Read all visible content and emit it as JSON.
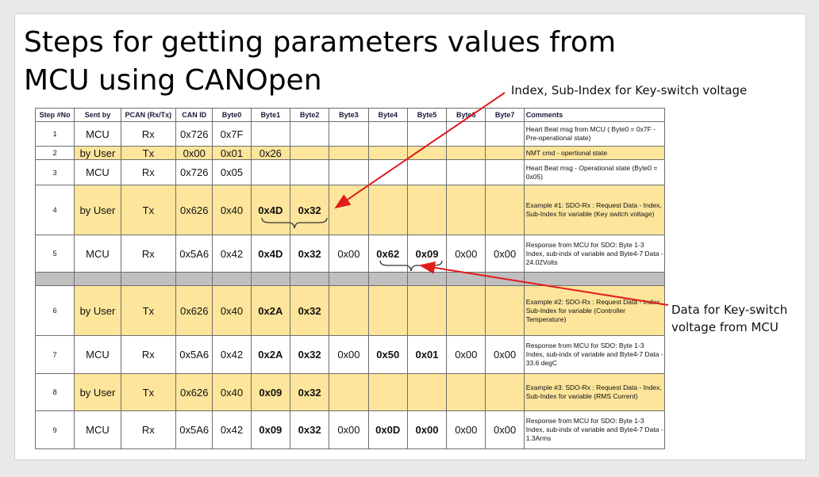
{
  "title": {
    "line1": "Steps for getting parameters values from",
    "line2": "MCU using CANOpen"
  },
  "table": {
    "headers": [
      "Step #No",
      "Sent by",
      "PCAN (Rx/Tx)",
      "CAN ID",
      "Byte0",
      "Byte1",
      "Byte2",
      "Byte3",
      "Byte4",
      "Byte5",
      "Byte6",
      "Byte7",
      "Comments"
    ],
    "rows": [
      {
        "step": "1",
        "sent_by": "MCU",
        "pcan": "Rx",
        "can_id": "0x726",
        "b0": "0x7F",
        "b1": "",
        "b2": "",
        "b3": "",
        "b4": "",
        "b5": "",
        "b6": "",
        "b7": "",
        "comment": "Heart Beat msg from MCU ( Byte0 = 0x7F - Pre-operational state)"
      },
      {
        "step": "2",
        "sent_by": "by User",
        "pcan": "Tx",
        "can_id": "0x00",
        "b0": "0x01",
        "b1": "0x26",
        "b2": "",
        "b3": "",
        "b4": "",
        "b5": "",
        "b6": "",
        "b7": "",
        "comment": "NMT cmd - opertional state"
      },
      {
        "step": "3",
        "sent_by": "MCU",
        "pcan": "Rx",
        "can_id": "0x726",
        "b0": "0x05",
        "b1": "",
        "b2": "",
        "b3": "",
        "b4": "",
        "b5": "",
        "b6": "",
        "b7": "",
        "comment": "Heart Beat msg - Operational state (Byte0 = 0x05)"
      },
      {
        "step": "4",
        "sent_by": "by User",
        "pcan": "Tx",
        "can_id": "0x626",
        "b0": "0x40",
        "b1": "0x4D",
        "b2": "0x32",
        "b3": "",
        "b4": "",
        "b5": "",
        "b6": "",
        "b7": "",
        "comment": "Example #1: SDO-Rx : Request Data - Index, Sub-Index for variable (Key switch voltage)"
      },
      {
        "step": "5",
        "sent_by": "MCU",
        "pcan": "Rx",
        "can_id": "0x5A6",
        "b0": "0x42",
        "b1": "0x4D",
        "b2": "0x32",
        "b3": "0x00",
        "b4": "0x62",
        "b5": "0x09",
        "b6": "0x00",
        "b7": "0x00",
        "comment": "Response from MCU for SDO: Byte 1-3 Index, sub-indx of variable and Byte4-7 Data - 24.02Volts"
      },
      {
        "step": "6",
        "sent_by": "by User",
        "pcan": "Tx",
        "can_id": "0x626",
        "b0": "0x40",
        "b1": "0x2A",
        "b2": "0x32",
        "b3": "",
        "b4": "",
        "b5": "",
        "b6": "",
        "b7": "",
        "comment": "Example #2: SDO-Rx : Request Data - Index, Sub-Index for variable (Controller Temperature)"
      },
      {
        "step": "7",
        "sent_by": "MCU",
        "pcan": "Rx",
        "can_id": "0x5A6",
        "b0": "0x42",
        "b1": "0x2A",
        "b2": "0x32",
        "b3": "0x00",
        "b4": "0x50",
        "b5": "0x01",
        "b6": "0x00",
        "b7": "0x00",
        "comment": "Response from MCU for SDO: Byte 1-3 Index, sub-indx of variable and Byte4-7 Data - 33.6 degC"
      },
      {
        "step": "8",
        "sent_by": "by User",
        "pcan": "Tx",
        "can_id": "0x626",
        "b0": "0x40",
        "b1": "0x09",
        "b2": "0x32",
        "b3": "",
        "b4": "",
        "b5": "",
        "b6": "",
        "b7": "",
        "comment": "Example #3: SDO-Rx : Request Data - Index, Sub-Index for variable (RMS Current)"
      },
      {
        "step": "9",
        "sent_by": "MCU",
        "pcan": "Rx",
        "can_id": "0x5A6",
        "b0": "0x42",
        "b1": "0x09",
        "b2": "0x32",
        "b3": "0x00",
        "b4": "0x0D",
        "b5": "0x00",
        "b6": "0x00",
        "b7": "0x00",
        "comment": "Response from MCU for SDO: Byte 1-3 Index, sub-indx of variable and Byte4-7 Data - 1.3Arms"
      }
    ]
  },
  "annotations": {
    "index_note": "Index, Sub-Index for Key-switch voltage",
    "data_note_line1": "Data for Key-switch",
    "data_note_line2": "voltage from MCU"
  },
  "colors": {
    "highlight": "#fde59b",
    "separator": "#bfbfbf",
    "arrow": "#e11b1b",
    "value_blue": "#2e75b6"
  }
}
